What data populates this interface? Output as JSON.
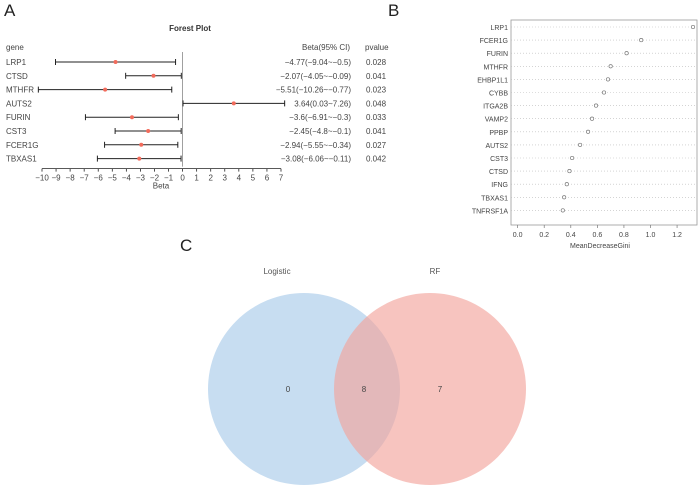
{
  "panels": {
    "a": "A",
    "b": "B",
    "c": "C"
  },
  "chart_data": [
    {
      "type": "forest",
      "title": "Forest Plot",
      "col_gene": "gene",
      "col_beta": "Beta(95% CI)",
      "col_p": "pvalue",
      "xlabel": "Beta",
      "xlim": [
        -10,
        7
      ],
      "xticks": [
        "−10",
        "−9",
        "−8",
        "−7",
        "−6",
        "−5",
        "−4",
        "−3",
        "−2",
        "−1",
        "0",
        "1",
        "2",
        "3",
        "4",
        "5",
        "6",
        "7"
      ],
      "reference_line": 0,
      "point_color": "#f26b5b",
      "rows": [
        {
          "gene": "LRP1",
          "beta": -4.77,
          "lo": -9.04,
          "hi": -0.5,
          "ci_text": "−4.77(−9.04~−0.5)",
          "p": "0.028"
        },
        {
          "gene": "CTSD",
          "beta": -2.07,
          "lo": -4.05,
          "hi": -0.09,
          "ci_text": "−2.07(−4.05~−0.09)",
          "p": "0.041"
        },
        {
          "gene": "MTHFR",
          "beta": -5.51,
          "lo": -10.26,
          "hi": -0.77,
          "ci_text": "−5.51(−10.26~−0.77)",
          "p": "0.023"
        },
        {
          "gene": "AUTS2",
          "beta": 3.64,
          "lo": 0.03,
          "hi": 7.26,
          "ci_text": "3.64(0.03~7.26)",
          "p": "0.048"
        },
        {
          "gene": "FURIN",
          "beta": -3.6,
          "lo": -6.91,
          "hi": -0.3,
          "ci_text": "−3.6(−6.91~−0.3)",
          "p": "0.033"
        },
        {
          "gene": "CST3",
          "beta": -2.45,
          "lo": -4.8,
          "hi": -0.1,
          "ci_text": "−2.45(−4.8~−0.1)",
          "p": "0.041"
        },
        {
          "gene": "FCER1G",
          "beta": -2.94,
          "lo": -5.55,
          "hi": -0.34,
          "ci_text": "−2.94(−5.55~−0.34)",
          "p": "0.027"
        },
        {
          "gene": "TBXAS1",
          "beta": -3.08,
          "lo": -6.06,
          "hi": -0.11,
          "ci_text": "−3.08(−6.06~−0.11)",
          "p": "0.042"
        }
      ]
    },
    {
      "type": "scatter",
      "xlabel": "MeanDecreaseGini",
      "xlim": [
        -0.05,
        1.35
      ],
      "xticks": [
        "0.0",
        "0.2",
        "0.4",
        "0.6",
        "0.8",
        "1.0",
        "1.2"
      ],
      "grid": "dotted-horizontal",
      "categories": [
        "LRP1",
        "FCER1G",
        "FURIN",
        "MTHFR",
        "EHBP1L1",
        "CYBB",
        "ITGA2B",
        "VAMP2",
        "PPBP",
        "AUTS2",
        "CST3",
        "CTSD",
        "IFNG",
        "TBXAS1",
        "TNFRSF1A"
      ],
      "values": [
        1.32,
        0.93,
        0.82,
        0.7,
        0.68,
        0.65,
        0.59,
        0.56,
        0.53,
        0.47,
        0.41,
        0.39,
        0.37,
        0.35,
        0.34
      ]
    },
    {
      "type": "venn",
      "sets": [
        {
          "name": "Logistic",
          "color": "#a9cbea"
        },
        {
          "name": "RF",
          "color": "#f3a59c"
        }
      ],
      "only_left": "0",
      "intersection": "8",
      "only_right": "7"
    }
  ]
}
